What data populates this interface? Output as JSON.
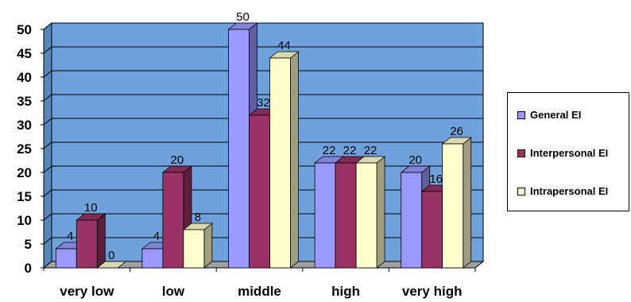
{
  "chart_data": {
    "type": "bar",
    "categories": [
      "very low",
      "low",
      "middle",
      "high",
      "very high"
    ],
    "series": [
      {
        "name": "General EI",
        "values": [
          4,
          4,
          50,
          22,
          20
        ],
        "labels": [
          "4",
          "4",
          "50",
          "22",
          "20"
        ],
        "color": "#9999ff"
      },
      {
        "name": "Interpersonal EI",
        "values": [
          10,
          20,
          32,
          22,
          16
        ],
        "labels": [
          "10",
          "20",
          "32",
          "22",
          "16"
        ],
        "color": "#993366"
      },
      {
        "name": "Intrapersonal EI",
        "values": [
          0,
          8,
          44,
          22,
          26
        ],
        "labels": [
          "0",
          "8",
          "44",
          "22",
          "26"
        ],
        "color": "#ffffcc"
      }
    ],
    "ylim": [
      0,
      50
    ],
    "yticks": [
      "0",
      "5",
      "10",
      "15",
      "20",
      "25",
      "30",
      "35",
      "40",
      "45",
      "50"
    ],
    "grid": true,
    "legend_position": "right",
    "plot_background": "#6fa1dd",
    "style": "3d"
  }
}
